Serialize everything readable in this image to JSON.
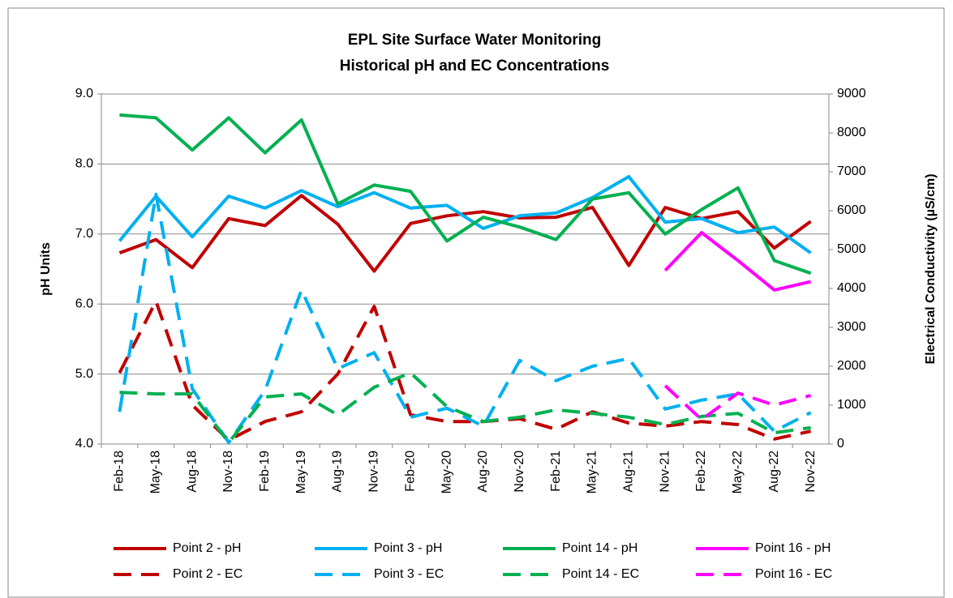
{
  "chart_data": {
    "type": "line",
    "title": [
      "EPL Site Surface Water Monitoring",
      "Historical pH and EC Concentrations"
    ],
    "ylabel": "pH Units",
    "y2label": "Electrical Conductivity (µS/cm)",
    "categories": [
      "Feb-18",
      "May-18",
      "Aug-18",
      "Nov-18",
      "Feb-19",
      "May-19",
      "Aug-19",
      "Nov-19",
      "Feb-20",
      "May-20",
      "Aug-20",
      "Nov-20",
      "Feb-21",
      "May-21",
      "Aug-21",
      "Nov-21",
      "Feb-22",
      "May-22",
      "Aug-22",
      "Nov-22"
    ],
    "ylim": [
      4,
      9
    ],
    "yticks": [
      {
        "value": 4,
        "label": "4.0"
      },
      {
        "value": 5,
        "label": "5.0"
      },
      {
        "value": 6,
        "label": "6.0"
      },
      {
        "value": 7,
        "label": "7.0"
      },
      {
        "value": 8,
        "label": "8.0"
      },
      {
        "value": 9,
        "label": "9.0"
      }
    ],
    "y2lim": [
      0,
      9000
    ],
    "y2ticks": [
      0,
      1000,
      2000,
      3000,
      4000,
      5000,
      6000,
      7000,
      8000,
      9000
    ],
    "grid": true,
    "legend": "bottom",
    "series": [
      {
        "name": "Point 2 - pH",
        "color": "#c00000",
        "dashed": false,
        "values": [
          6.73,
          6.92,
          6.52,
          7.22,
          7.12,
          7.55,
          7.14,
          6.47,
          7.15,
          7.26,
          7.32,
          7.23,
          7.24,
          7.38,
          6.55,
          7.38,
          7.22,
          7.32,
          6.8,
          7.18
        ]
      },
      {
        "name": "Point 3 - pH",
        "color": "#00b0f0",
        "dashed": false,
        "values": [
          6.9,
          7.54,
          6.96,
          7.54,
          7.37,
          7.62,
          7.39,
          7.59,
          7.37,
          7.41,
          7.08,
          7.26,
          7.3,
          7.52,
          7.82,
          7.17,
          7.22,
          7.02,
          7.1,
          6.73
        ]
      },
      {
        "name": "Point 14 - pH",
        "color": "#00b050",
        "dashed": false,
        "values": [
          8.7,
          8.66,
          8.2,
          8.66,
          8.16,
          8.63,
          7.43,
          7.7,
          7.61,
          6.9,
          7.24,
          7.1,
          6.92,
          7.5,
          7.59,
          7.0,
          7.35,
          7.66,
          6.62,
          6.44
        ]
      },
      {
        "name": "Point 16 - pH",
        "color": "#ff00ff",
        "dashed": false,
        "values": [
          null,
          null,
          null,
          null,
          null,
          null,
          null,
          null,
          null,
          null,
          null,
          null,
          null,
          null,
          null,
          6.48,
          7.02,
          6.62,
          6.2,
          6.32
        ]
      },
      {
        "name": "Point 2 - EC",
        "color": "#c00000",
        "dashed": true,
        "axis": "y2",
        "values": [
          1830,
          3670,
          1000,
          100,
          580,
          830,
          1800,
          3540,
          750,
          580,
          580,
          650,
          380,
          830,
          540,
          460,
          580,
          500,
          130,
          330
        ]
      },
      {
        "name": "Point 3 - EC",
        "color": "#00b0f0",
        "dashed": true,
        "axis": "y2",
        "values": [
          830,
          6420,
          1420,
          40,
          1380,
          3960,
          1940,
          2350,
          690,
          920,
          460,
          2150,
          1630,
          2000,
          2200,
          900,
          1130,
          1290,
          330,
          810
        ]
      },
      {
        "name": "Point 14 - EC",
        "color": "#00b050",
        "dashed": true,
        "axis": "y2",
        "values": [
          1330,
          1290,
          1290,
          40,
          1210,
          1290,
          750,
          1460,
          1830,
          960,
          580,
          690,
          880,
          790,
          690,
          500,
          710,
          790,
          290,
          420
        ]
      },
      {
        "name": "Point 16 - EC",
        "color": "#ff00ff",
        "dashed": true,
        "axis": "y2",
        "values": [
          null,
          null,
          null,
          null,
          null,
          null,
          null,
          null,
          null,
          null,
          null,
          null,
          null,
          null,
          null,
          1500,
          630,
          1310,
          1000,
          1250
        ]
      }
    ]
  }
}
